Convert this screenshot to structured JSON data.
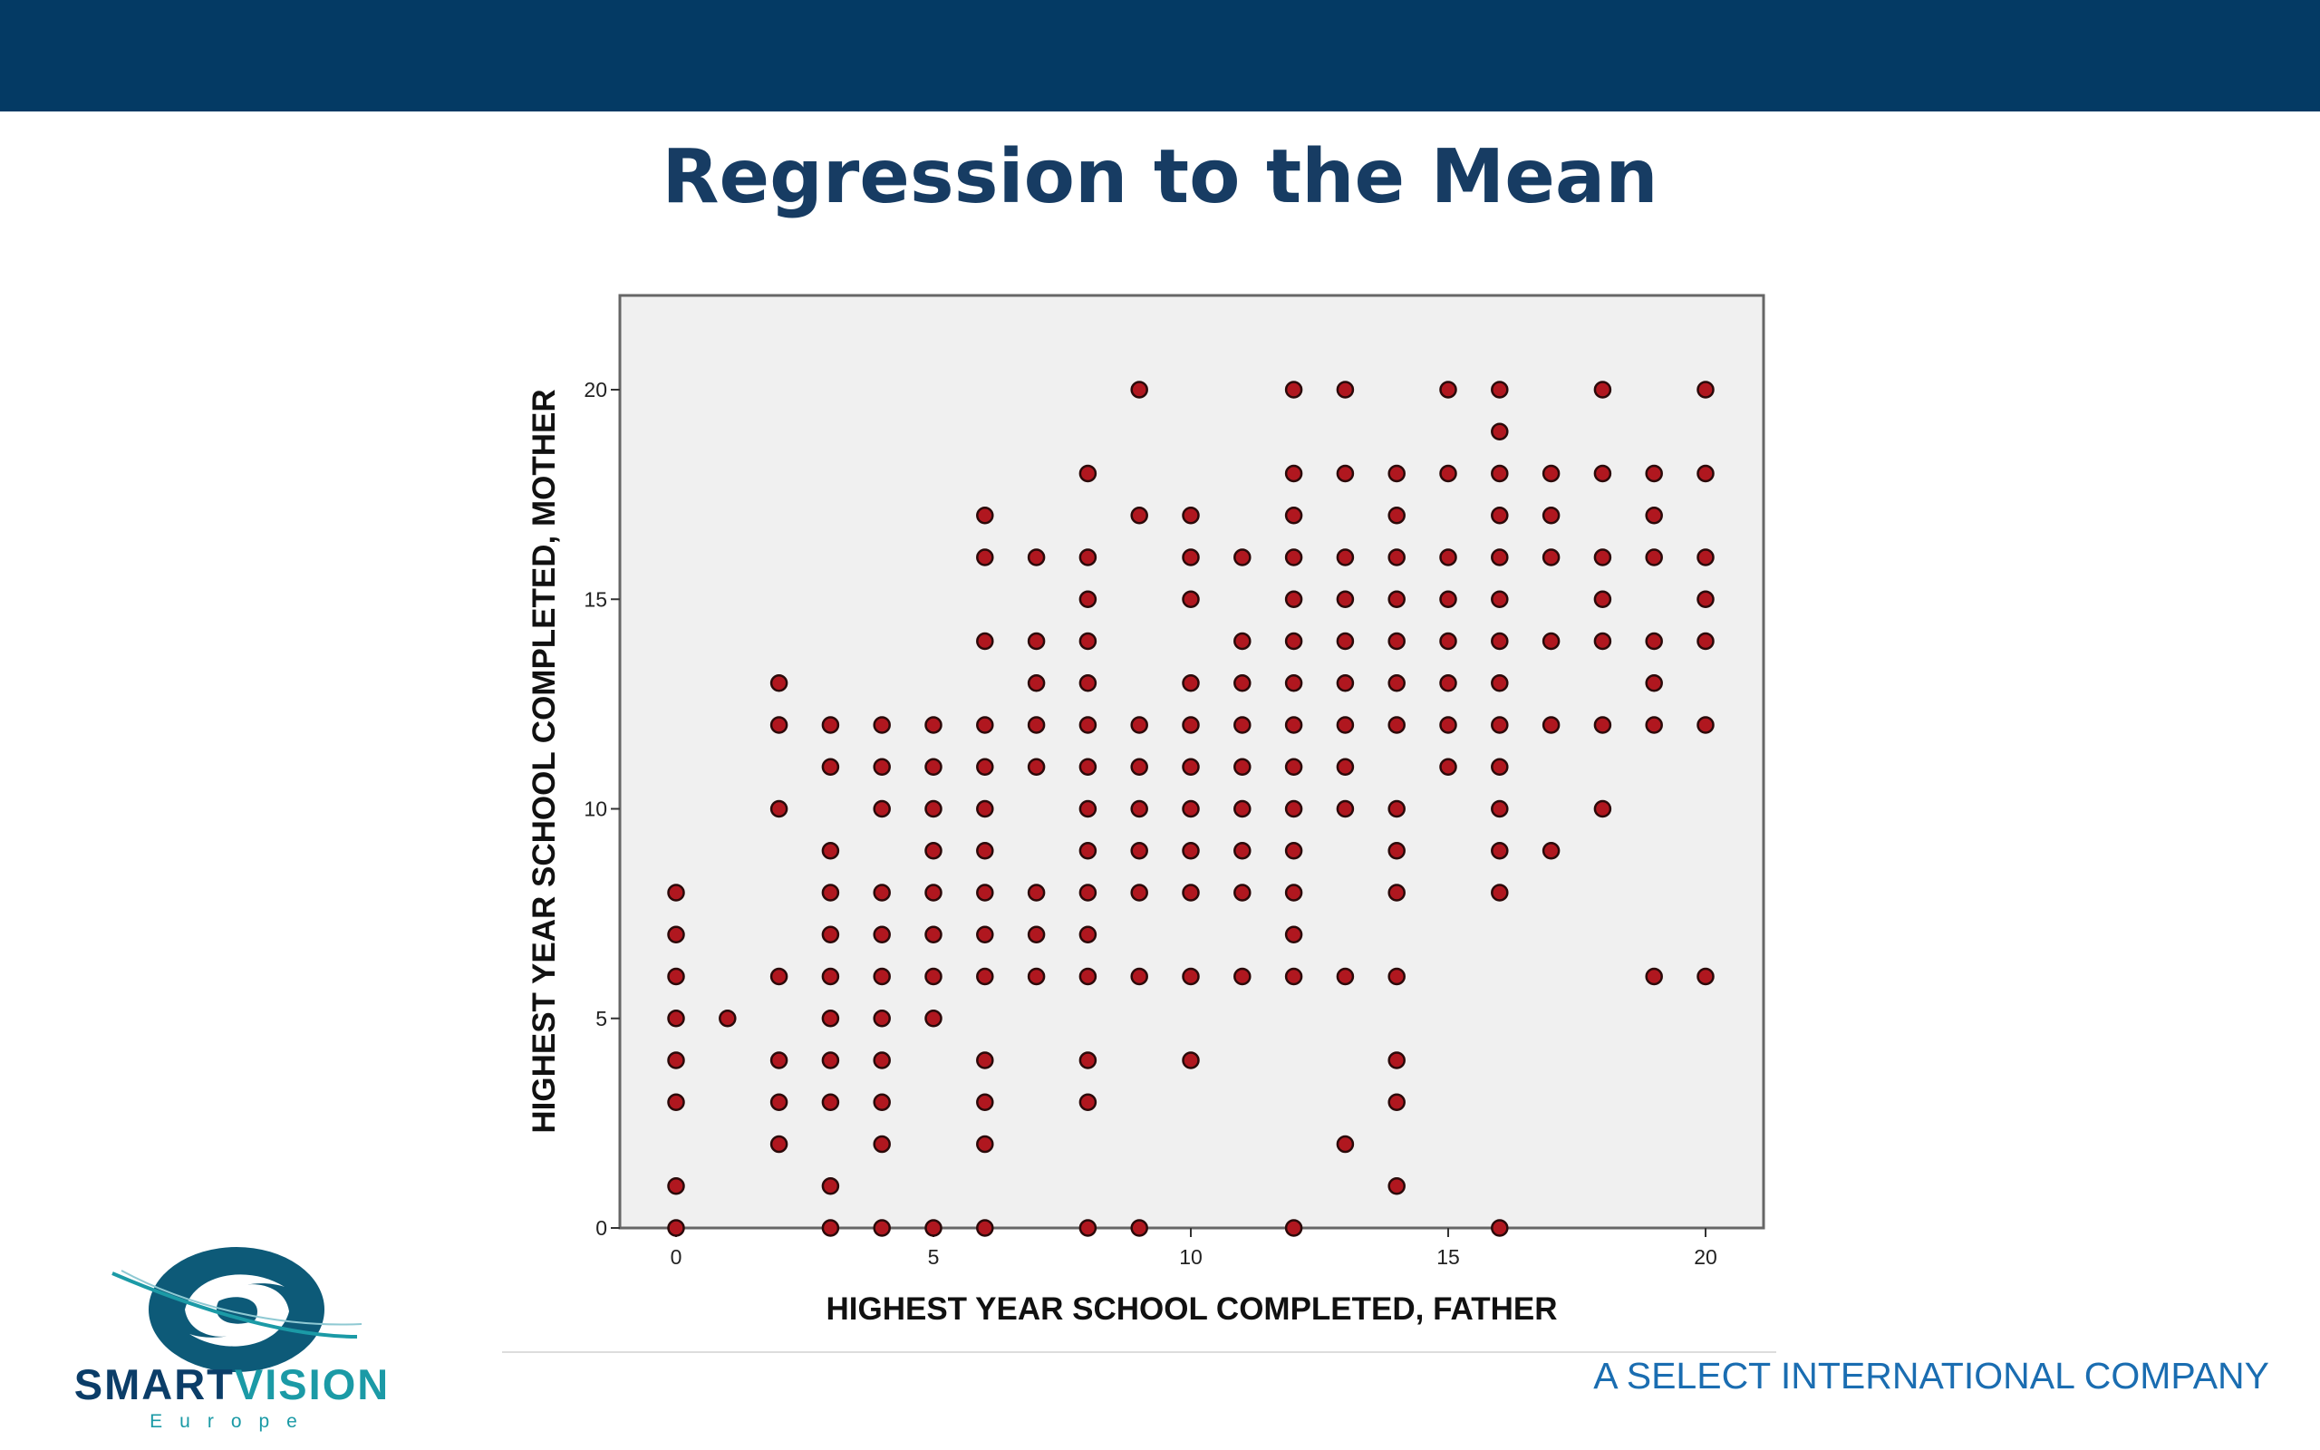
{
  "header": {
    "title": "Regression to the Mean"
  },
  "colors": {
    "header_bar": "#043a64",
    "title": "#173c63",
    "plot_background": "#f0f0f0",
    "marker_fill": "#b0171f",
    "marker_edge": "#2a0a0a",
    "company": "#1a6db1",
    "brand_dark": "#0b3d68",
    "brand_teal": "#1b9aa6"
  },
  "chart_data": {
    "type": "scatter",
    "title": "",
    "xlabel": "HIGHEST YEAR SCHOOL COMPLETED, FATHER",
    "ylabel": "HIGHEST YEAR SCHOOL COMPLETED, MOTHER",
    "xlim": [
      -1.1,
      21.1
    ],
    "ylim": [
      0,
      20
    ],
    "xticks": [
      0,
      5,
      10,
      15,
      20
    ],
    "yticks": [
      0,
      5,
      10,
      15,
      20
    ],
    "grid": false,
    "legend": "none",
    "points": [
      [
        0,
        0
      ],
      [
        0,
        1
      ],
      [
        0,
        3
      ],
      [
        0,
        4
      ],
      [
        0,
        5
      ],
      [
        0,
        6
      ],
      [
        0,
        7
      ],
      [
        0,
        8
      ],
      [
        1,
        5
      ],
      [
        2,
        2
      ],
      [
        2,
        3
      ],
      [
        2,
        4
      ],
      [
        2,
        6
      ],
      [
        2,
        10
      ],
      [
        2,
        12
      ],
      [
        2,
        13
      ],
      [
        3,
        0
      ],
      [
        3,
        1
      ],
      [
        3,
        3
      ],
      [
        3,
        4
      ],
      [
        3,
        5
      ],
      [
        3,
        6
      ],
      [
        3,
        7
      ],
      [
        3,
        8
      ],
      [
        3,
        9
      ],
      [
        3,
        11
      ],
      [
        3,
        12
      ],
      [
        4,
        0
      ],
      [
        4,
        2
      ],
      [
        4,
        3
      ],
      [
        4,
        4
      ],
      [
        4,
        5
      ],
      [
        4,
        6
      ],
      [
        4,
        7
      ],
      [
        4,
        8
      ],
      [
        4,
        10
      ],
      [
        4,
        11
      ],
      [
        4,
        12
      ],
      [
        5,
        0
      ],
      [
        5,
        5
      ],
      [
        5,
        6
      ],
      [
        5,
        7
      ],
      [
        5,
        8
      ],
      [
        5,
        9
      ],
      [
        5,
        10
      ],
      [
        5,
        11
      ],
      [
        5,
        12
      ],
      [
        6,
        0
      ],
      [
        6,
        2
      ],
      [
        6,
        3
      ],
      [
        6,
        4
      ],
      [
        6,
        6
      ],
      [
        6,
        7
      ],
      [
        6,
        8
      ],
      [
        6,
        9
      ],
      [
        6,
        10
      ],
      [
        6,
        11
      ],
      [
        6,
        12
      ],
      [
        6,
        14
      ],
      [
        6,
        16
      ],
      [
        6,
        17
      ],
      [
        7,
        6
      ],
      [
        7,
        7
      ],
      [
        7,
        8
      ],
      [
        7,
        11
      ],
      [
        7,
        12
      ],
      [
        7,
        13
      ],
      [
        7,
        14
      ],
      [
        7,
        16
      ],
      [
        8,
        0
      ],
      [
        8,
        3
      ],
      [
        8,
        4
      ],
      [
        8,
        6
      ],
      [
        8,
        7
      ],
      [
        8,
        8
      ],
      [
        8,
        9
      ],
      [
        8,
        10
      ],
      [
        8,
        11
      ],
      [
        8,
        12
      ],
      [
        8,
        13
      ],
      [
        8,
        14
      ],
      [
        8,
        15
      ],
      [
        8,
        16
      ],
      [
        8,
        18
      ],
      [
        9,
        0
      ],
      [
        9,
        6
      ],
      [
        9,
        8
      ],
      [
        9,
        9
      ],
      [
        9,
        10
      ],
      [
        9,
        11
      ],
      [
        9,
        12
      ],
      [
        9,
        17
      ],
      [
        9,
        20
      ],
      [
        10,
        4
      ],
      [
        10,
        6
      ],
      [
        10,
        8
      ],
      [
        10,
        9
      ],
      [
        10,
        10
      ],
      [
        10,
        11
      ],
      [
        10,
        12
      ],
      [
        10,
        13
      ],
      [
        10,
        15
      ],
      [
        10,
        16
      ],
      [
        10,
        17
      ],
      [
        11,
        6
      ],
      [
        11,
        8
      ],
      [
        11,
        9
      ],
      [
        11,
        10
      ],
      [
        11,
        11
      ],
      [
        11,
        12
      ],
      [
        11,
        13
      ],
      [
        11,
        14
      ],
      [
        11,
        16
      ],
      [
        12,
        0
      ],
      [
        12,
        6
      ],
      [
        12,
        7
      ],
      [
        12,
        8
      ],
      [
        12,
        9
      ],
      [
        12,
        10
      ],
      [
        12,
        11
      ],
      [
        12,
        12
      ],
      [
        12,
        13
      ],
      [
        12,
        14
      ],
      [
        12,
        15
      ],
      [
        12,
        16
      ],
      [
        12,
        17
      ],
      [
        12,
        18
      ],
      [
        12,
        20
      ],
      [
        13,
        2
      ],
      [
        13,
        6
      ],
      [
        13,
        10
      ],
      [
        13,
        11
      ],
      [
        13,
        12
      ],
      [
        13,
        13
      ],
      [
        13,
        14
      ],
      [
        13,
        15
      ],
      [
        13,
        16
      ],
      [
        13,
        18
      ],
      [
        13,
        20
      ],
      [
        14,
        1
      ],
      [
        14,
        3
      ],
      [
        14,
        4
      ],
      [
        14,
        6
      ],
      [
        14,
        8
      ],
      [
        14,
        9
      ],
      [
        14,
        10
      ],
      [
        14,
        12
      ],
      [
        14,
        13
      ],
      [
        14,
        14
      ],
      [
        14,
        15
      ],
      [
        14,
        16
      ],
      [
        14,
        17
      ],
      [
        14,
        18
      ],
      [
        15,
        11
      ],
      [
        15,
        12
      ],
      [
        15,
        13
      ],
      [
        15,
        14
      ],
      [
        15,
        15
      ],
      [
        15,
        16
      ],
      [
        15,
        18
      ],
      [
        15,
        20
      ],
      [
        16,
        0
      ],
      [
        16,
        8
      ],
      [
        16,
        9
      ],
      [
        16,
        10
      ],
      [
        16,
        11
      ],
      [
        16,
        12
      ],
      [
        16,
        13
      ],
      [
        16,
        14
      ],
      [
        16,
        15
      ],
      [
        16,
        16
      ],
      [
        16,
        17
      ],
      [
        16,
        18
      ],
      [
        16,
        19
      ],
      [
        16,
        20
      ],
      [
        17,
        9
      ],
      [
        17,
        12
      ],
      [
        17,
        14
      ],
      [
        17,
        16
      ],
      [
        17,
        17
      ],
      [
        17,
        18
      ],
      [
        18,
        10
      ],
      [
        18,
        12
      ],
      [
        18,
        14
      ],
      [
        18,
        15
      ],
      [
        18,
        16
      ],
      [
        18,
        18
      ],
      [
        18,
        20
      ],
      [
        19,
        6
      ],
      [
        19,
        12
      ],
      [
        19,
        13
      ],
      [
        19,
        14
      ],
      [
        19,
        16
      ],
      [
        19,
        17
      ],
      [
        19,
        18
      ],
      [
        20,
        6
      ],
      [
        20,
        12
      ],
      [
        20,
        14
      ],
      [
        20,
        15
      ],
      [
        20,
        16
      ],
      [
        20,
        18
      ],
      [
        20,
        20
      ]
    ]
  },
  "footer": {
    "logo_brand_1": "SMART",
    "logo_brand_2": "VISION",
    "logo_sub": "Europe",
    "company": "A SELECT INTERNATIONAL COMPANY"
  }
}
